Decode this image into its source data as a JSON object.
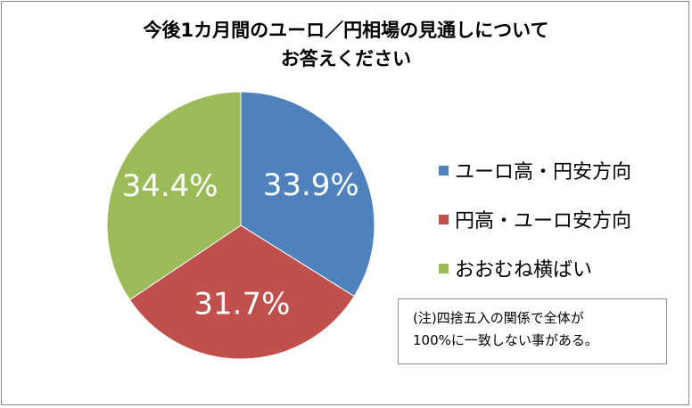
{
  "chart_data": {
    "type": "pie",
    "title": "今後1カ月間のユーロ／円相場の見通しについて",
    "subtitle": "お答えください",
    "slices": [
      {
        "name": "ユーロ高・円安方向",
        "value": 33.9,
        "label": "33.9%",
        "color": "#4f81bd"
      },
      {
        "name": "円高・ユーロ安方向",
        "value": 31.7,
        "label": "31.7%",
        "color": "#c0504d"
      },
      {
        "name": "おおむね横ばい",
        "value": 34.4,
        "label": "34.4%",
        "color": "#9bbb59"
      }
    ],
    "legend_position": "right",
    "start_angle": "12 o'clock, clockwise",
    "label_color": "#ffffff"
  },
  "note": {
    "line1": "(注)四捨五入の関係で全体が",
    "line2": "100%に一致しない事がある。"
  }
}
